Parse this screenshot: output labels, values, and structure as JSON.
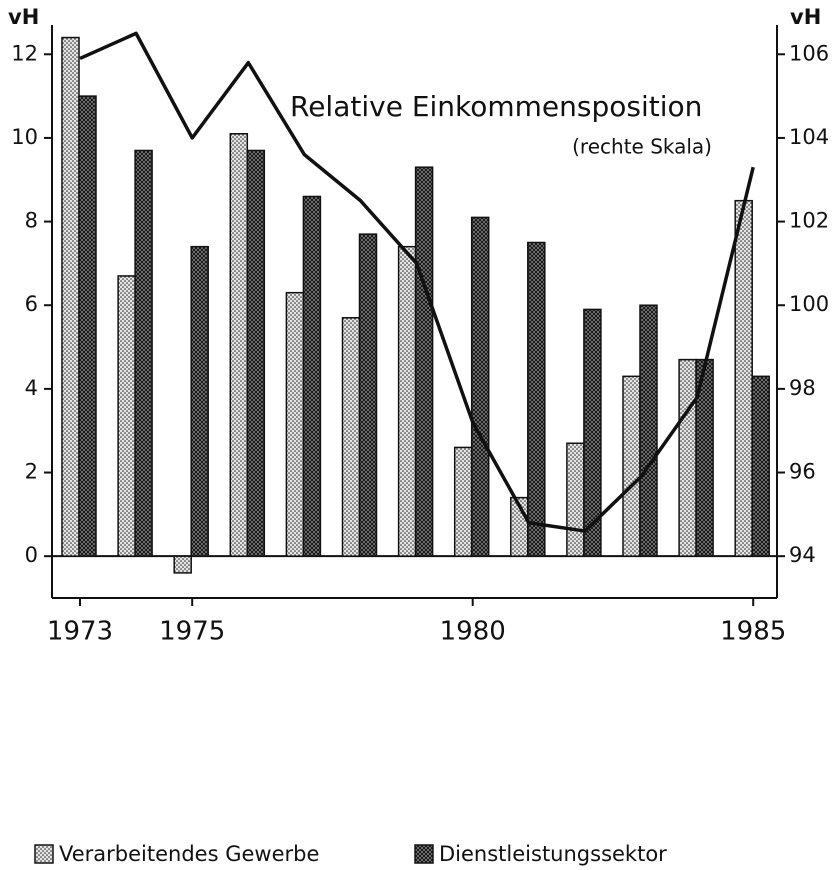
{
  "chart_data": {
    "type": "bar",
    "y_label": "vH",
    "y2_label": "vH",
    "categories": [
      "1973",
      null,
      "1975",
      null,
      null,
      null,
      null,
      "1980",
      null,
      null,
      null,
      null,
      "1985"
    ],
    "series": [
      {
        "name": "Verarbeitendes Gewerbe",
        "color": "#e4e4e4",
        "values": [
          12.4,
          6.7,
          -0.4,
          10.1,
          6.3,
          5.7,
          7.4,
          2.6,
          1.4,
          2.7,
          4.3,
          4.7,
          8.5
        ]
      },
      {
        "name": "Dienstleistungssektor",
        "color": "#8a8a8a",
        "values": [
          11.0,
          9.7,
          7.4,
          9.7,
          8.6,
          7.7,
          9.3,
          8.1,
          7.5,
          5.9,
          6.0,
          4.7,
          4.3
        ]
      },
      {
        "name": "Relative Einkommensposition",
        "color": "#111111",
        "type": "line",
        "axis": "y2",
        "values": [
          105.9,
          106.5,
          104.0,
          105.8,
          103.6,
          102.5,
          101.0,
          97.2,
          94.8,
          94.6,
          95.9,
          97.8,
          103.3
        ]
      }
    ],
    "annotation": "(rechte Skala)",
    "ylim": [
      -1,
      12.7
    ],
    "yticks": [
      0,
      2,
      4,
      6,
      8,
      10,
      12
    ],
    "y2lim": [
      93,
      106.7
    ],
    "y2ticks": [
      94,
      96,
      98,
      100,
      102,
      104,
      106
    ]
  }
}
